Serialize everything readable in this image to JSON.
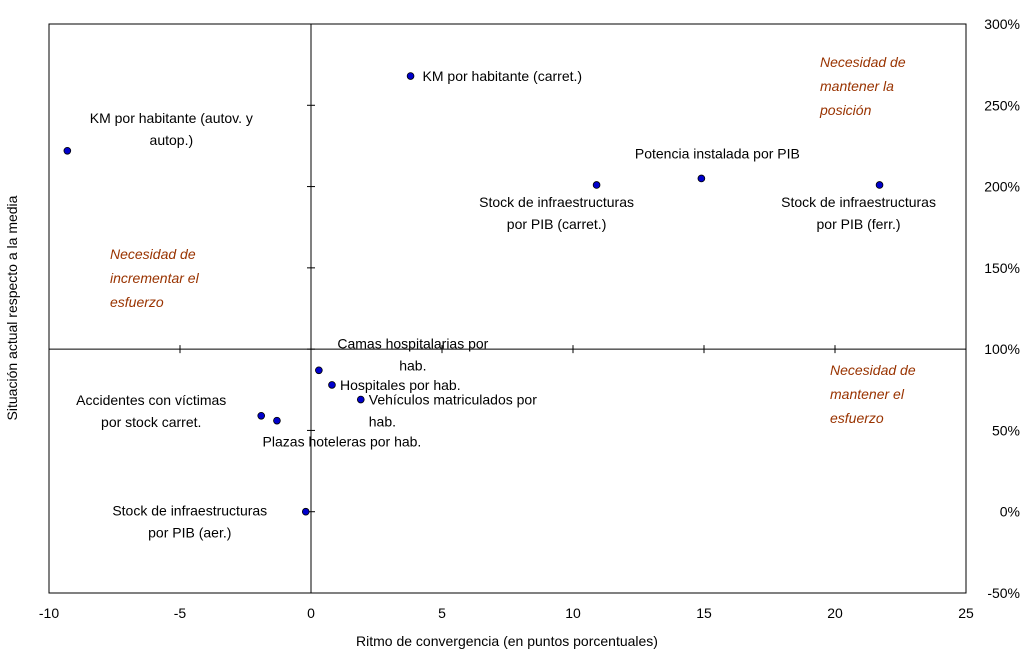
{
  "chart_data": {
    "type": "scatter",
    "title": "",
    "xlabel": "Ritmo de convergencia (en puntos porcentuales)",
    "ylabel": "Situación actual respecto a la media",
    "xlim": [
      -10,
      25
    ],
    "ylim": [
      -50,
      300
    ],
    "x_ticks": [
      -10,
      -5,
      0,
      5,
      10,
      15,
      20,
      25
    ],
    "y_ticks": [
      -50,
      0,
      50,
      100,
      150,
      200,
      250,
      300
    ],
    "y_tick_labels": [
      "-50%",
      "0%",
      "50%",
      "100%",
      "150%",
      "200%",
      "250%",
      "300%"
    ],
    "x_cross": 100,
    "y_cross": 0,
    "grid": false,
    "point_color": "#0000cc",
    "points": [
      {
        "x": 3.8,
        "y": 268,
        "label": [
          "KM por habitante (carret.)"
        ]
      },
      {
        "x": -9.3,
        "y": 222,
        "label": [
          "KM por habitante (autov. y",
          "autop.)"
        ]
      },
      {
        "x": 14.9,
        "y": 205,
        "label": [
          "Potencia instalada por PIB"
        ]
      },
      {
        "x": 10.9,
        "y": 201,
        "label": [
          "Stock de infraestructuras",
          "por PIB (carret.)"
        ]
      },
      {
        "x": 21.7,
        "y": 201,
        "label": [
          "Stock de infraestructuras",
          "por PIB (ferr.)"
        ]
      },
      {
        "x": 0.3,
        "y": 87,
        "label": [
          "Camas hospitalarias por",
          "hab."
        ]
      },
      {
        "x": 0.8,
        "y": 78,
        "label": [
          "Hospitales por hab."
        ]
      },
      {
        "x": 1.9,
        "y": 69,
        "label": [
          "Vehículos matriculados por",
          "hab."
        ]
      },
      {
        "x": -1.9,
        "y": 59,
        "label": [
          "Accidentes con víctimas",
          "por stock carret."
        ]
      },
      {
        "x": -1.3,
        "y": 56,
        "label": [
          "Plazas hoteleras por hab."
        ]
      },
      {
        "x": -0.2,
        "y": 0,
        "label": [
          "Stock de infraestructuras",
          "por PIB (aer.)"
        ]
      }
    ],
    "annotations": [
      {
        "lines": [
          "Necesidad de",
          "mantener la",
          "posición"
        ],
        "color": "#993300",
        "quadrant": "top-right"
      },
      {
        "lines": [
          "Necesidad de",
          "incrementar el",
          "esfuerzo"
        ],
        "color": "#993300",
        "quadrant": "left"
      },
      {
        "lines": [
          "Necesidad de",
          "mantener el",
          "esfuerzo"
        ],
        "color": "#993300",
        "quadrant": "bottom-right"
      }
    ]
  }
}
